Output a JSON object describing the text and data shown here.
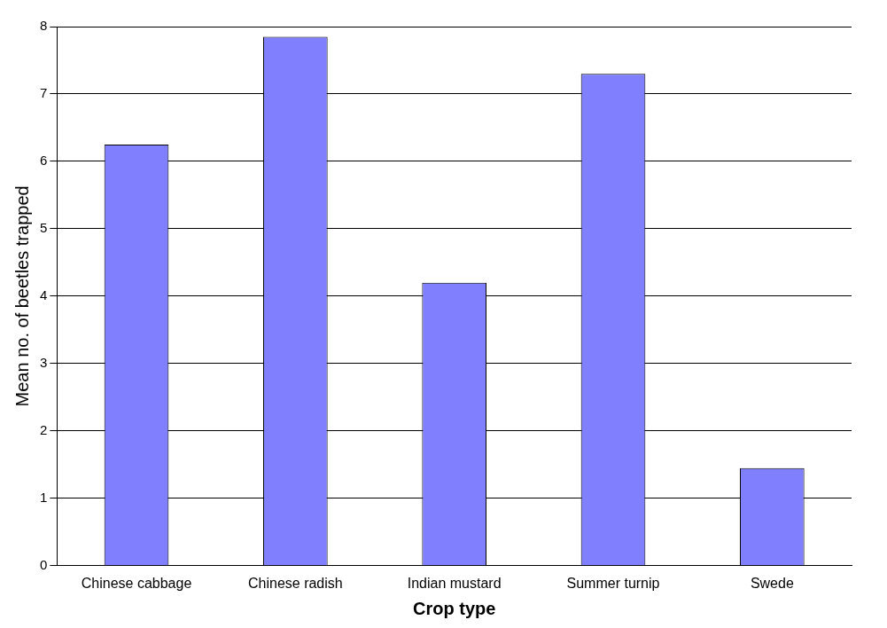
{
  "chart_data": {
    "type": "bar",
    "xlabel": "Crop type",
    "ylabel": "Mean no. of beetles trapped",
    "categories": [
      "Chinese cabbage",
      "Chinese radish",
      "Indian mustard",
      "Summer turnip",
      "Swede"
    ],
    "values": [
      6.25,
      7.85,
      4.2,
      7.3,
      1.45
    ],
    "color": "#8080ff",
    "ylim": [
      0,
      8
    ],
    "yticks": [
      0,
      1,
      2,
      3,
      4,
      5,
      6,
      7,
      8
    ],
    "grid": "y",
    "legend": false
  }
}
